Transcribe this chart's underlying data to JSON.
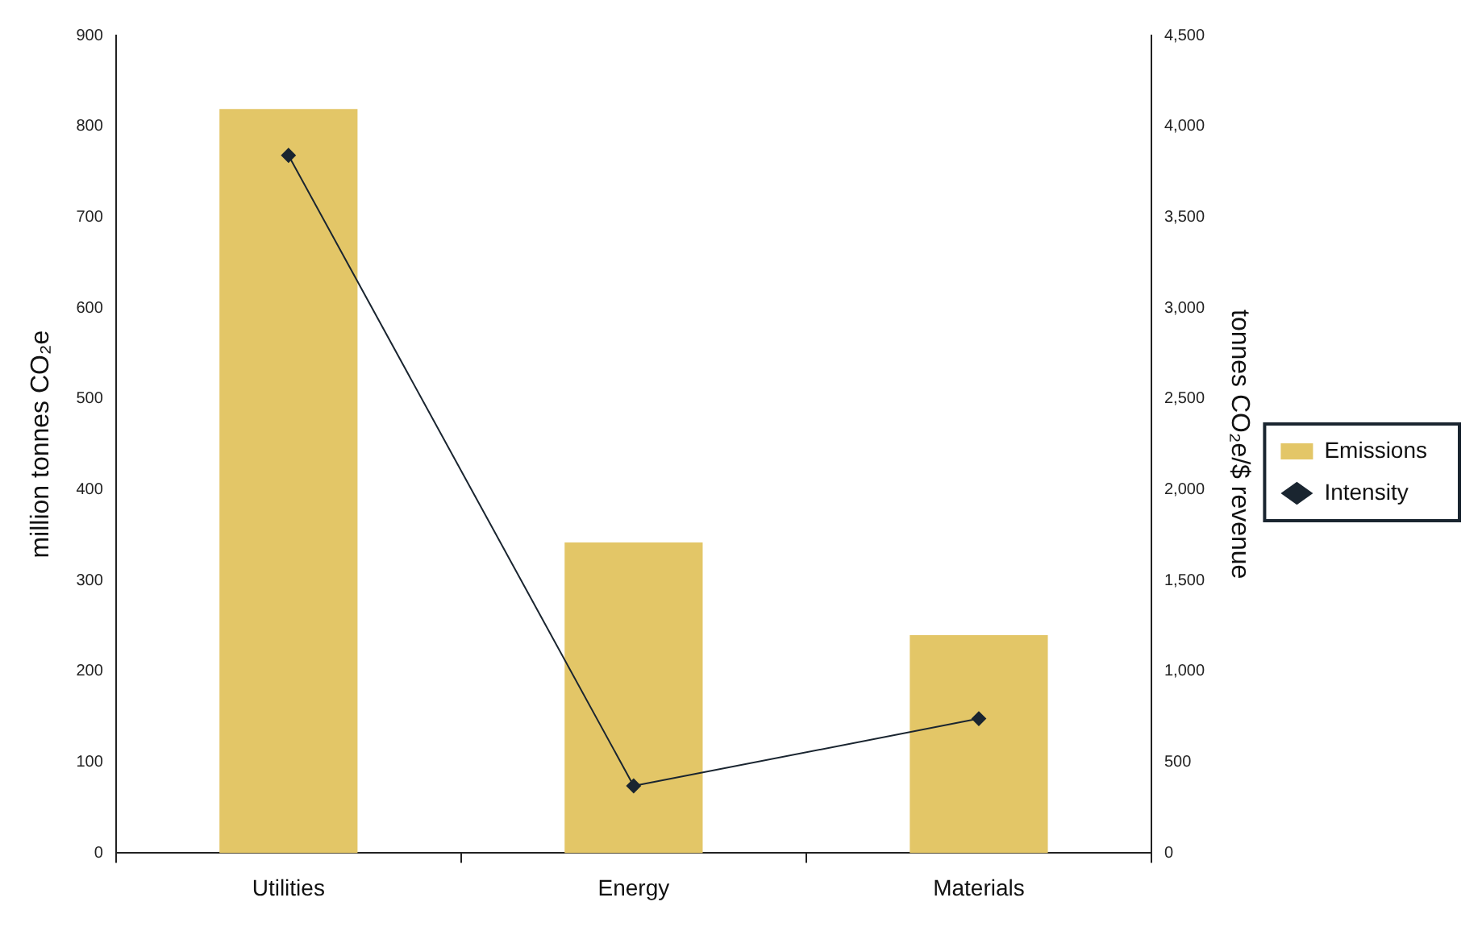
{
  "chart_data": {
    "type": "bar",
    "ylabel": "million tonnes CO₂e",
    "y2label": "tonnes CO₂e/$ revenue",
    "categories": [
      "Utilities",
      "Energy",
      "Materials"
    ],
    "series": [
      {
        "name": "Emissions",
        "color": "#e3c667",
        "values": [
          819,
          342,
          240
        ]
      },
      {
        "name": "Intensity",
        "type": "line",
        "axis": "y2",
        "color": "#1a2530",
        "marker": "diamond",
        "values": [
          3840,
          370,
          740
        ]
      }
    ],
    "ylim": [
      0,
      900
    ],
    "yticks": [
      0,
      100,
      200,
      300,
      400,
      500,
      600,
      700,
      800,
      900
    ],
    "y2lim": [
      0,
      4500
    ],
    "y2ticks": [
      0,
      500,
      {
        "value": 1000,
        "label": "1,000"
      },
      {
        "value": 1500,
        "label": "1,500"
      },
      {
        "value": 2000,
        "label": "2,000"
      },
      {
        "value": 2500,
        "label": "2,500"
      },
      {
        "value": 3000,
        "label": "3,000"
      },
      {
        "value": 3500,
        "label": "3,500"
      },
      {
        "value": 4000,
        "label": "4,000"
      },
      {
        "value": 4500,
        "label": "4,500"
      }
    ],
    "legend": "right",
    "grid": false
  }
}
